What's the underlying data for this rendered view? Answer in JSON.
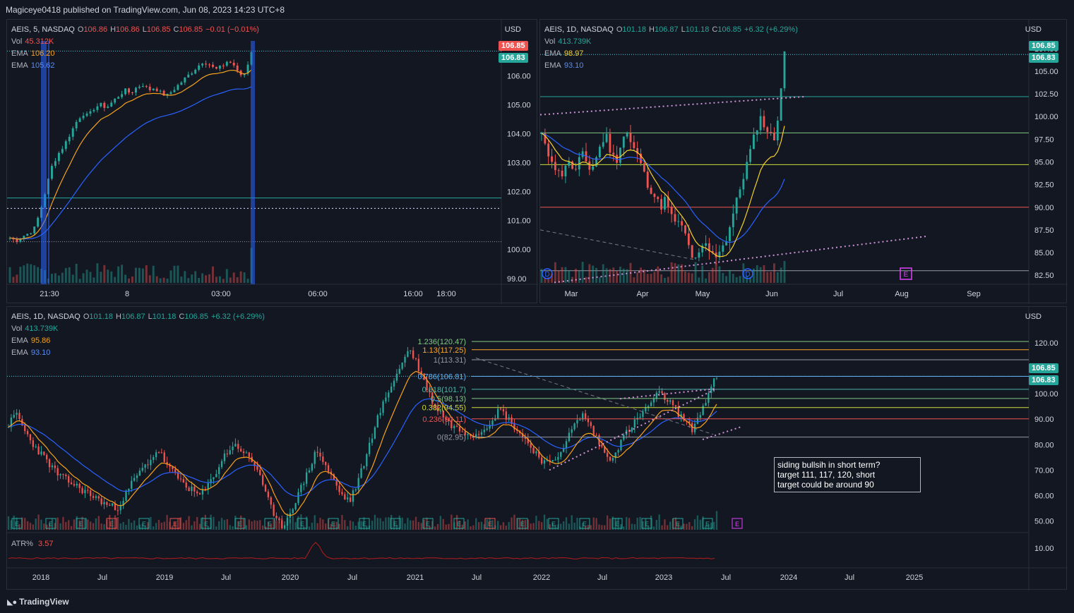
{
  "publisher_line": "Magiceye0418 published on TradingView.com, Jun 08, 2023 14:23 UTC+8",
  "footer_logo": "TradingView",
  "colors": {
    "up": "#26a69a",
    "down": "#ef5350",
    "ema_fast": "#f7a21b",
    "ema_slow": "#2962ff",
    "atr": "#b71c1c"
  },
  "panels": [
    {
      "id": "intraday",
      "legend": {
        "symbol": "AEIS, 5, NASDAQ",
        "ohlc": [
          {
            "k": "O",
            "v": "106.86",
            "c": "#ef5350"
          },
          {
            "k": "H",
            "v": "106.86",
            "c": "#ef5350"
          },
          {
            "k": "L",
            "v": "106.85",
            "c": "#ef5350"
          },
          {
            "k": "C",
            "v": "106.85",
            "c": "#ef5350"
          }
        ],
        "change": "−0.01 (−0.01%)",
        "change_color": "#ef5350",
        "vol_label": "Vol",
        "vol_value": "45.312K",
        "vol_color": "#ef5350",
        "ema": [
          {
            "label": "EMA",
            "value": "106.20",
            "color": "#f7a21b"
          },
          {
            "label": "EMA",
            "value": "105.62",
            "color": "#5b8def"
          }
        ]
      },
      "currency": "USD",
      "price_tags": [
        {
          "text": "106.85",
          "bg": "#ef5350"
        },
        {
          "text": "106.83",
          "bg": "#26a69a"
        }
      ]
    },
    {
      "id": "daily",
      "legend": {
        "symbol": "AEIS, 1D, NASDAQ",
        "ohlc": [
          {
            "k": "O",
            "v": "101.18",
            "c": "#26a69a"
          },
          {
            "k": "H",
            "v": "106.87",
            "c": "#26a69a"
          },
          {
            "k": "L",
            "v": "101.18",
            "c": "#26a69a"
          },
          {
            "k": "C",
            "v": "106.85",
            "c": "#26a69a"
          }
        ],
        "change": "+6.32 (+6.29%)",
        "change_color": "#26a69a",
        "vol_label": "Vol",
        "vol_value": "413.739K",
        "vol_color": "#26a69a",
        "ema": [
          {
            "label": "EMA",
            "value": "98.97",
            "color": "#f5d02b"
          },
          {
            "label": "EMA",
            "value": "93.10",
            "color": "#5b8def"
          }
        ]
      },
      "currency": "USD",
      "price_tags": [
        {
          "text": "106.85",
          "bg": "#26a69a"
        },
        {
          "text": "106.83",
          "bg": "#26a69a"
        }
      ]
    },
    {
      "id": "weekly",
      "legend": {
        "symbol": "AEIS, 1D, NASDAQ",
        "ohlc": [
          {
            "k": "O",
            "v": "101.18",
            "c": "#26a69a"
          },
          {
            "k": "H",
            "v": "106.87",
            "c": "#26a69a"
          },
          {
            "k": "L",
            "v": "101.18",
            "c": "#26a69a"
          },
          {
            "k": "C",
            "v": "106.85",
            "c": "#26a69a"
          }
        ],
        "change": "+6.32 (+6.29%)",
        "change_color": "#26a69a",
        "vol_label": "Vol",
        "vol_value": "413.739K",
        "vol_color": "#26a69a",
        "ema": [
          {
            "label": "EMA",
            "value": "95.86",
            "color": "#f7a21b"
          },
          {
            "label": "EMA",
            "value": "93.10",
            "color": "#5b8def"
          }
        ]
      },
      "currency": "USD",
      "price_tags": [
        {
          "text": "106.85",
          "bg": "#26a69a"
        },
        {
          "text": "106.83",
          "bg": "#26a69a"
        }
      ],
      "atr_label": "ATR%",
      "atr_value": "3.57",
      "note": "siding bullsih in short term?\ntarget 111, 117, 120, short\ntarget could be around 90"
    }
  ],
  "chart_data": [
    {
      "type": "candlestick",
      "title": "AEIS, 5, NASDAQ",
      "x_tick_labels": [
        "21:30",
        "8",
        "03:00",
        "06:00",
        "16:00",
        "18:00"
      ],
      "y_ticks": [
        99,
        100,
        101,
        102,
        103,
        104,
        105,
        106
      ],
      "ylim": [
        98.8,
        107.2
      ],
      "levels": [
        101.78,
        101.42,
        100.27
      ],
      "path_close": [
        100.4,
        100.3,
        100.45,
        100.55,
        100.7,
        101.3,
        102.1,
        102.9,
        103.3,
        103.6,
        104.0,
        104.4,
        104.7,
        104.6,
        104.9,
        105.0,
        104.9,
        105.1,
        105.3,
        105.5,
        105.4,
        105.6,
        105.7,
        105.5,
        105.6,
        105.4,
        105.3,
        105.5,
        105.7,
        105.9,
        106.1,
        106.3,
        106.5,
        106.4,
        106.2,
        106.3,
        106.5,
        106.4,
        106.0,
        106.1,
        106.85
      ],
      "ema_fast_end": 106.2,
      "ema_slow_end": 105.62
    },
    {
      "type": "candlestick",
      "title": "AEIS, 1D, NASDAQ",
      "x_tick_labels": [
        "Mar",
        "Apr",
        "May",
        "Jun",
        "Jul",
        "Aug",
        "Sep"
      ],
      "y_ticks": [
        82.5,
        85,
        87.5,
        90,
        92.5,
        95,
        97.5,
        100,
        102.5,
        105,
        107.5
      ],
      "ylim": [
        81.5,
        108.5
      ],
      "levels": [
        102.2,
        98.2,
        94.7,
        90.0,
        83.0
      ],
      "path_close": [
        98,
        96,
        95.5,
        94,
        93.5,
        95,
        94.5,
        94,
        96,
        95,
        94,
        95.5,
        97,
        98,
        96,
        95,
        97,
        98.5,
        97,
        96,
        95,
        93,
        92,
        91,
        90,
        91,
        89,
        88.5,
        88,
        87,
        85,
        84,
        85,
        86,
        85,
        84.5,
        85.5,
        86,
        88,
        90,
        92,
        94,
        96,
        98,
        100,
        99,
        98,
        97.5,
        101.5,
        106.85
      ],
      "ema_fast_end": 98.97,
      "ema_slow_end": 93.1,
      "events": [
        "D",
        "D",
        "E"
      ]
    },
    {
      "type": "candlestick",
      "title": "AEIS, 1D, NASDAQ",
      "x_tick_labels": [
        "2018",
        "Jul",
        "2019",
        "Jul",
        "2020",
        "Jul",
        "2021",
        "Jul",
        "2022",
        "Jul",
        "2023",
        "Jul",
        "2024",
        "Jul",
        "2025"
      ],
      "y_ticks": [
        50,
        60,
        70,
        80,
        90,
        100,
        110,
        120
      ],
      "ylim": [
        46,
        128
      ],
      "fib_levels": [
        {
          "ratio": "1.236",
          "price": 120.47,
          "label": "1.236(120.47)",
          "color": "#81c784"
        },
        {
          "ratio": "1.13",
          "price": 117.25,
          "label": "1.13(117.25)",
          "color": "#ffa726"
        },
        {
          "ratio": "1",
          "price": 113.31,
          "label": "1(113.31)",
          "color": "#9598a1"
        },
        {
          "ratio": "0.786",
          "price": 106.81,
          "label": "0.786(106.81)",
          "color": "#64b5f6"
        },
        {
          "ratio": "0.618",
          "price": 101.7,
          "label": "0.618(101.7)",
          "color": "#4db6ac"
        },
        {
          "ratio": "0.5",
          "price": 98.13,
          "label": "0.5(98.13)",
          "color": "#81c784"
        },
        {
          "ratio": "0.382",
          "price": 94.55,
          "label": "0.382(94.55)",
          "color": "#cddc39"
        },
        {
          "ratio": "0.236",
          "price": 90.11,
          "label": "0.236(90.11)",
          "color": "#ef5350"
        },
        {
          "ratio": "0",
          "price": 82.95,
          "label": "0(82.95)",
          "color": "#9598a1"
        }
      ],
      "path_close": [
        88,
        92,
        85,
        80,
        76,
        72,
        68,
        66,
        64,
        62,
        60,
        58,
        56,
        55,
        60,
        66,
        70,
        74,
        78,
        72,
        68,
        65,
        62,
        60,
        64,
        70,
        76,
        80,
        78,
        74,
        70,
        60,
        50,
        48,
        55,
        62,
        70,
        78,
        72,
        66,
        60,
        58,
        66,
        76,
        88,
        96,
        104,
        110,
        118,
        112,
        104,
        96,
        92,
        88,
        86,
        85,
        84,
        86,
        90,
        94,
        90,
        86,
        82,
        78,
        74,
        72,
        76,
        82,
        88,
        92,
        86,
        80,
        74,
        78,
        84,
        88,
        92,
        96,
        100,
        98,
        94,
        90,
        86,
        92,
        100,
        106.85
      ],
      "ema_fast_end": 95.86,
      "ema_slow_end": 93.1,
      "atr_end": 3.57,
      "atr_y_ticks": [
        10
      ]
    }
  ]
}
